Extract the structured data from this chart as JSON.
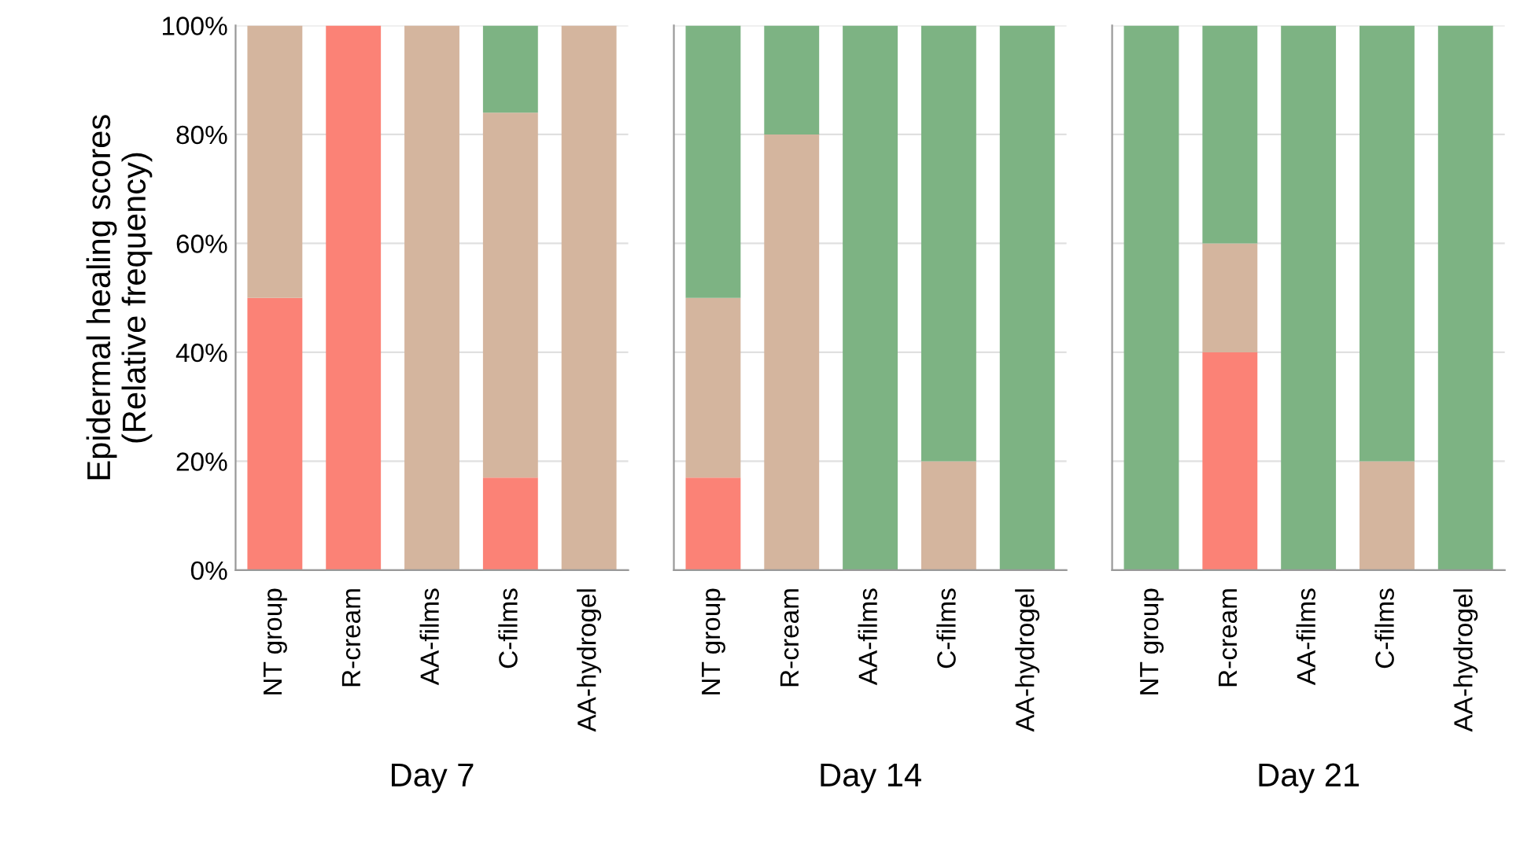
{
  "chart_data": [
    {
      "type": "bar",
      "stacked": true,
      "xlabel": "Day 7",
      "ylabel": "Epidermal healing scores\n(Relative frequency)",
      "categories": [
        "NT group",
        "R-cream",
        "AA-films",
        "C-films",
        "AA-hydrogel"
      ],
      "series": [
        {
          "color": "#fb8276",
          "values": [
            50,
            100,
            0,
            17,
            0
          ]
        },
        {
          "color": "#d4b59e",
          "values": [
            50,
            0,
            100,
            67,
            100
          ]
        },
        {
          "color": "#7db383",
          "values": [
            0,
            0,
            0,
            16,
            0
          ]
        }
      ],
      "ylim": [
        0,
        100
      ],
      "yticks": [
        {
          "value": 0,
          "label": "0%"
        },
        {
          "value": 20,
          "label": "20%"
        },
        {
          "value": 40,
          "label": "40%"
        },
        {
          "value": 60,
          "label": "60%"
        },
        {
          "value": 80,
          "label": "80%"
        },
        {
          "value": 100,
          "label": "100%"
        }
      ],
      "grid": "y"
    },
    {
      "type": "bar",
      "stacked": true,
      "xlabel": "Day 14",
      "categories": [
        "NT group",
        "R-cream",
        "AA-films",
        "C-films",
        "AA-hydrogel"
      ],
      "series": [
        {
          "color": "#fb8276",
          "values": [
            17,
            0,
            0,
            0,
            0
          ]
        },
        {
          "color": "#d4b59e",
          "values": [
            33,
            80,
            0,
            20,
            0
          ]
        },
        {
          "color": "#7db383",
          "values": [
            50,
            20,
            100,
            80,
            100
          ]
        }
      ],
      "ylim": [
        0,
        100
      ],
      "yticks": [
        {
          "value": 0,
          "label": null
        },
        {
          "value": 20,
          "label": null
        },
        {
          "value": 40,
          "label": null
        },
        {
          "value": 60,
          "label": null
        },
        {
          "value": 80,
          "label": null
        },
        {
          "value": 100,
          "label": null
        }
      ],
      "grid": "y",
      "tick_labels": "x"
    },
    {
      "type": "bar",
      "stacked": true,
      "xlabel": "Day 21",
      "categories": [
        "NT group",
        "R-cream",
        "AA-films",
        "C-films",
        "AA-hydrogel"
      ],
      "series": [
        {
          "color": "#fb8276",
          "values": [
            0,
            40,
            0,
            0,
            0
          ]
        },
        {
          "color": "#d4b59e",
          "values": [
            0,
            20,
            0,
            20,
            0
          ]
        },
        {
          "color": "#7db383",
          "values": [
            100,
            40,
            100,
            80,
            100
          ]
        }
      ],
      "ylim": [
        0,
        100
      ],
      "yticks": [
        {
          "value": 0,
          "label": null
        },
        {
          "value": 20,
          "label": null
        },
        {
          "value": 40,
          "label": null
        },
        {
          "value": 60,
          "label": null
        },
        {
          "value": 80,
          "label": null
        },
        {
          "value": 100,
          "label": null
        }
      ],
      "grid": "y",
      "tick_labels": "x"
    }
  ]
}
